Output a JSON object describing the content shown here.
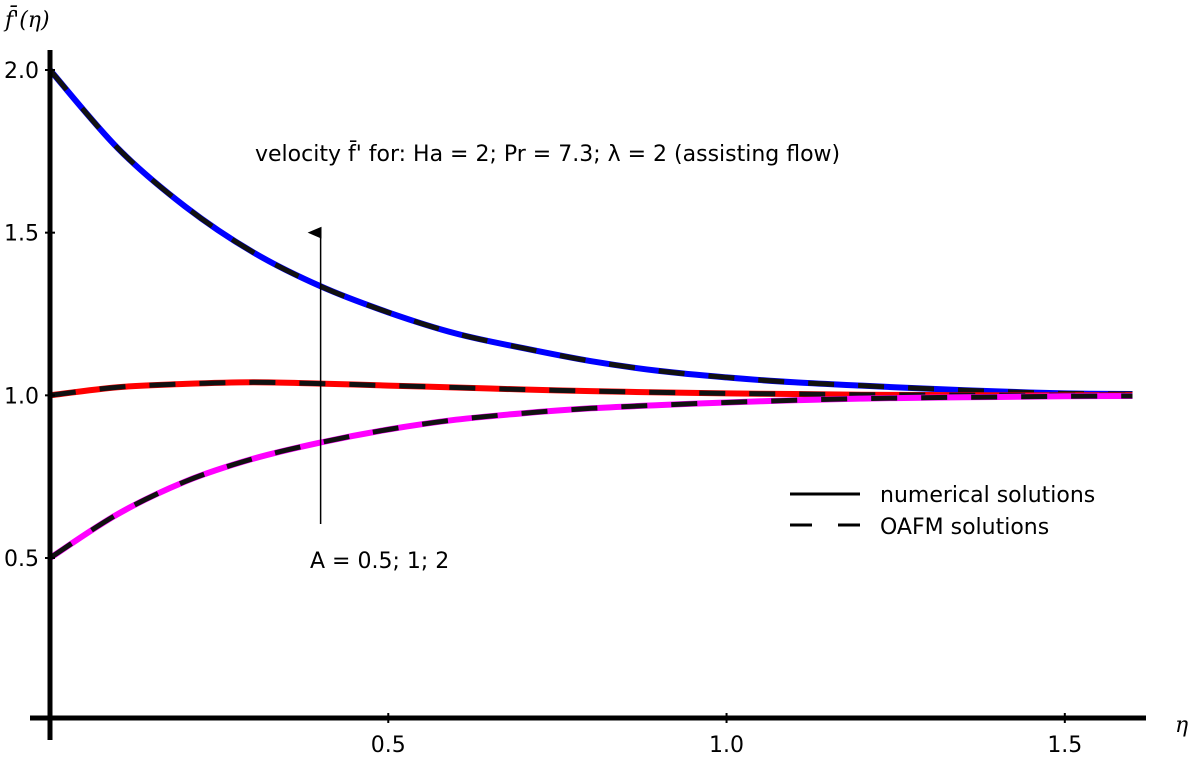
{
  "chart_data": {
    "type": "line",
    "title": "velocity f̄' for: Ha = 2; Pr = 7.3;  λ = 2  (assisting flow)",
    "xlabel": "η",
    "ylabel": "f̄'(η)",
    "xlim": [
      0,
      1.62
    ],
    "ylim": [
      0,
      2.08
    ],
    "xticks": [
      0.5,
      1.0,
      1.5
    ],
    "xtick_labels": [
      "0.5",
      "1.0",
      "1.5"
    ],
    "yticks": [
      0.5,
      1.0,
      1.5,
      2.0
    ],
    "ytick_labels": [
      "0.5",
      "1.0",
      "1.5",
      "2.0"
    ],
    "grid": false,
    "legend_position": "right",
    "legend": [
      {
        "label": "numerical solutions",
        "style": "solid"
      },
      {
        "label": "OAFM solutions",
        "style": "dashed"
      }
    ],
    "annotation": "A = 0.5; 1; 2",
    "arrow": {
      "x": 0.4,
      "from_y": 0.6,
      "to_y": 1.5
    },
    "x": [
      0,
      0.1,
      0.2,
      0.3,
      0.4,
      0.5,
      0.6,
      0.7,
      0.8,
      0.9,
      1.0,
      1.1,
      1.2,
      1.3,
      1.4,
      1.5,
      1.6
    ],
    "series": [
      {
        "color": "#0000ff",
        "values": [
          2.0,
          1.76,
          1.58,
          1.44,
          1.335,
          1.255,
          1.19,
          1.145,
          1.105,
          1.075,
          1.055,
          1.04,
          1.03,
          1.02,
          1.012,
          1.006,
          1.004
        ]
      },
      {
        "color": "#ff0000",
        "values": [
          1.0,
          1.025,
          1.035,
          1.04,
          1.036,
          1.03,
          1.024,
          1.018,
          1.013,
          1.009,
          1.006,
          1.004,
          1.002,
          1.001,
          1.0,
          1.0,
          1.0
        ]
      },
      {
        "color": "#ff00ff",
        "values": [
          0.5,
          0.635,
          0.735,
          0.805,
          0.855,
          0.895,
          0.925,
          0.945,
          0.96,
          0.97,
          0.978,
          0.985,
          0.99,
          0.993,
          0.995,
          0.997,
          0.998
        ]
      }
    ]
  }
}
